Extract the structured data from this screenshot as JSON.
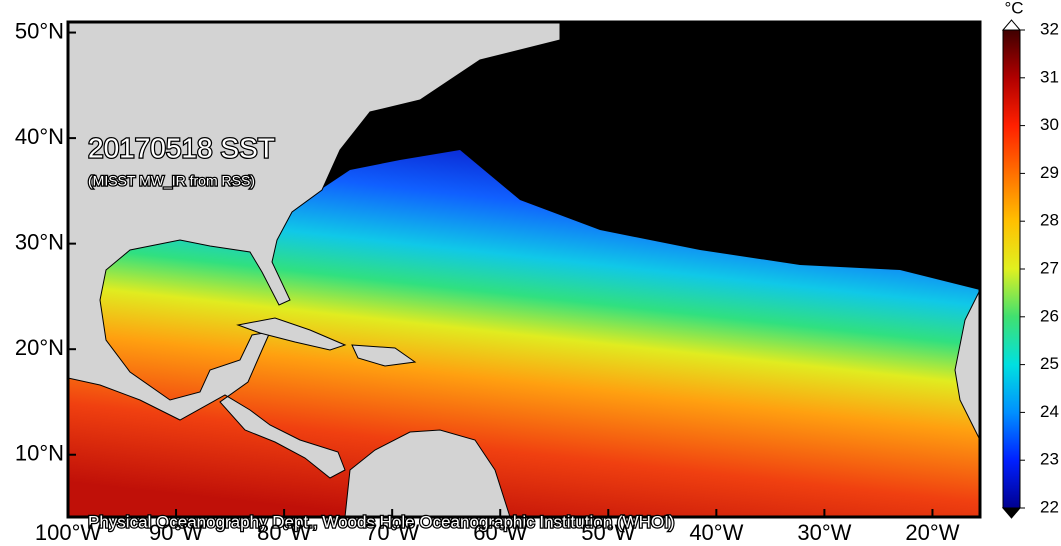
{
  "map": {
    "title": "20170518 SST",
    "subtitle": "(MISST MW_IR from RSS)",
    "credit": "Physical Oceanography Dept., Woods Hole Oceanographic Institution (WHOI)",
    "lon_range": [
      -100,
      -15.6
    ],
    "lat_range": [
      4.1,
      51
    ],
    "lon_ticks": [
      {
        "value": -100,
        "label": "100°W"
      },
      {
        "value": -90,
        "label": "90°W"
      },
      {
        "value": -80,
        "label": "80°W"
      },
      {
        "value": -70,
        "label": "70°W"
      },
      {
        "value": -60,
        "label": "60°W"
      },
      {
        "value": -50,
        "label": "50°W"
      },
      {
        "value": -40,
        "label": "40°W"
      },
      {
        "value": -30,
        "label": "30°W"
      },
      {
        "value": -20,
        "label": "20°W"
      }
    ],
    "lat_ticks": [
      {
        "value": 10,
        "label": "10°N"
      },
      {
        "value": 20,
        "label": "20°N"
      },
      {
        "value": 30,
        "label": "30°N"
      },
      {
        "value": 40,
        "label": "40°N"
      },
      {
        "value": 50,
        "label": "50°N"
      }
    ]
  },
  "colorbar": {
    "unit": "°C",
    "range": [
      22,
      32
    ],
    "ticks": [
      22,
      23,
      24,
      25,
      26,
      27,
      28,
      29,
      30,
      31,
      32
    ]
  }
}
